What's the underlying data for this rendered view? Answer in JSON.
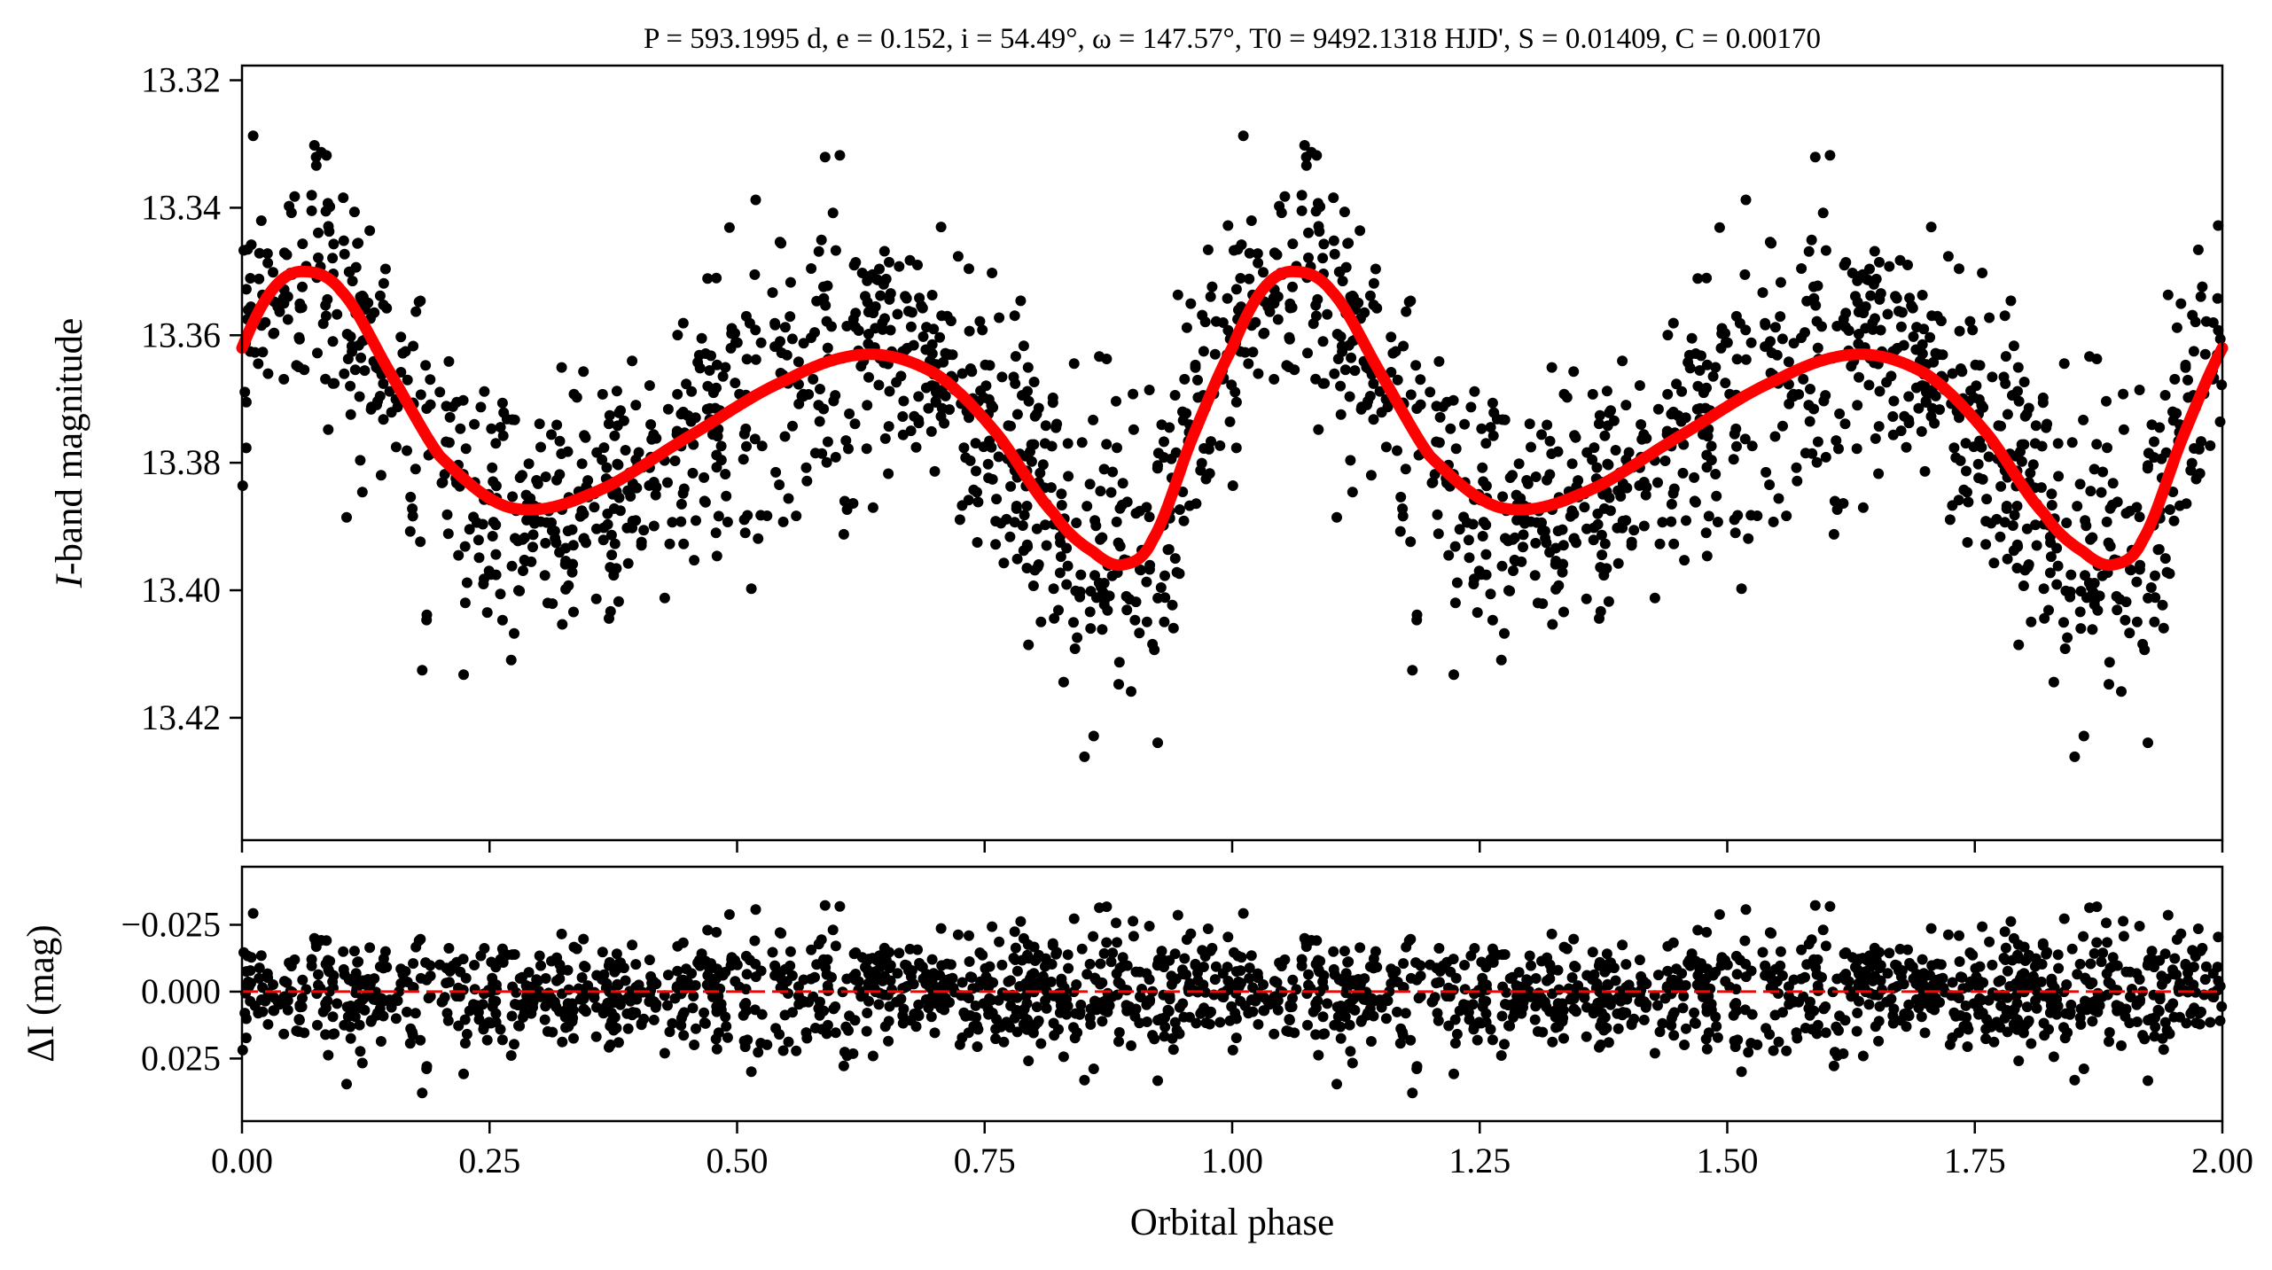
{
  "chart_data": [
    {
      "type": "scatter",
      "panel": "light-curve",
      "title": "P = 593.1995 d, e = 0.152, i = 54.49°, ω = 147.57°, T0 = 9492.1318 HJD', S = 0.01409, C = 0.00170",
      "title_parts": {
        "P": "593.1995 d",
        "e": "0.152",
        "i": "54.49°",
        "omega": "147.57°",
        "T0": "9492.1318 HJD'",
        "S": "0.01409",
        "C": "0.00170"
      },
      "xlabel": "",
      "ylabel_italic": "I",
      "ylabel_rest": "-band magnitude",
      "xlim": [
        0,
        2
      ],
      "ylim": [
        13.4392,
        13.3177
      ],
      "y_inverted": true,
      "yticks": [
        "13.32",
        "13.34",
        "13.36",
        "13.38",
        "13.40",
        "13.42"
      ],
      "ytick_values": [
        13.32,
        13.34,
        13.36,
        13.38,
        13.4,
        13.42
      ],
      "xtick_values": [
        0,
        0.25,
        0.5,
        0.75,
        1.0,
        1.25,
        1.5,
        1.75,
        2.0
      ],
      "model_color": "#ff0000",
      "point_color": "#000000",
      "model_keypoints": {
        "phase": [
          0.0,
          0.03,
          0.06,
          0.1,
          0.15,
          0.2,
          0.27,
          0.35,
          0.45,
          0.55,
          0.63,
          0.7,
          0.76,
          0.82,
          0.86,
          0.89,
          0.92,
          0.96
        ],
        "mag": [
          13.362,
          13.353,
          13.35,
          13.353,
          13.366,
          13.379,
          13.387,
          13.385,
          13.376,
          13.367,
          13.363,
          13.366,
          13.375,
          13.388,
          13.394,
          13.396,
          13.392,
          13.376
        ]
      },
      "points_per_cycle": 1000,
      "scatter_sigma_mag": 0.01,
      "repeated_every_phase": 1
    },
    {
      "type": "scatter",
      "panel": "residuals",
      "xlabel": "Orbital phase",
      "ylabel": "ΔI (mag)",
      "xlim": [
        0,
        2
      ],
      "ylim": [
        0.0484,
        -0.0467
      ],
      "y_inverted": true,
      "yticks": [
        "−0.025",
        "0.000",
        "0.025"
      ],
      "ytick_values": [
        -0.025,
        0,
        0.025
      ],
      "xticks": [
        "0.00",
        "0.25",
        "0.50",
        "0.75",
        "1.00",
        "1.25",
        "1.50",
        "1.75",
        "2.00"
      ],
      "xtick_values": [
        0,
        0.25,
        0.5,
        0.75,
        1.0,
        1.25,
        1.5,
        1.75,
        2.0
      ],
      "zero_line_color": "#ff0000",
      "zero_line_style": "dashed"
    }
  ]
}
